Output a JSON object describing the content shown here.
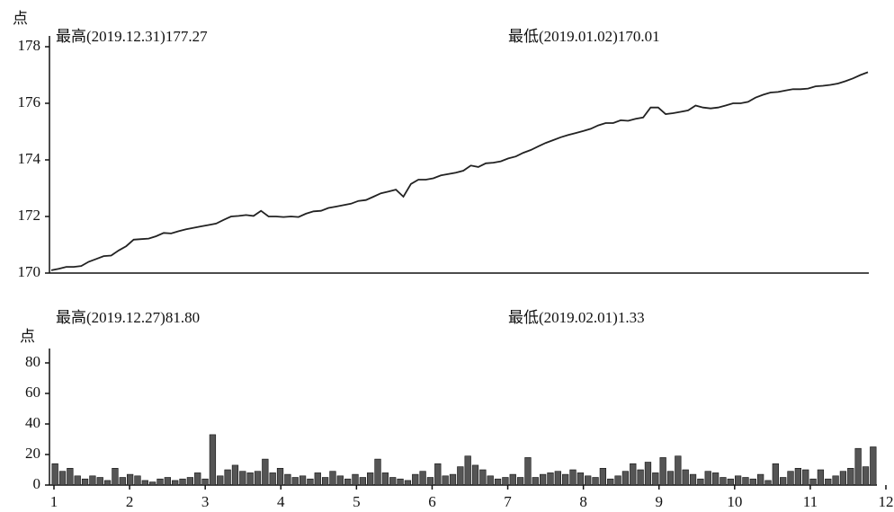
{
  "chart_data": [
    {
      "type": "line",
      "y_unit": "点",
      "annotations": [
        "最高(2019.12.31)177.27",
        "最低(2019.01.02)170.01"
      ],
      "color": "#222222",
      "ylim": [
        170,
        178
      ],
      "yticks": [
        170,
        172,
        174,
        176,
        178
      ],
      "values": [
        170.1,
        170.15,
        170.22,
        170.22,
        170.25,
        170.4,
        170.5,
        170.6,
        170.62,
        170.8,
        170.95,
        171.18,
        171.2,
        171.22,
        171.3,
        171.42,
        171.4,
        171.48,
        171.55,
        171.6,
        171.65,
        171.7,
        171.75,
        171.88,
        172.0,
        172.02,
        172.05,
        172.02,
        172.2,
        172.0,
        172.0,
        171.98,
        172.0,
        171.98,
        172.1,
        172.18,
        172.2,
        172.3,
        172.35,
        172.4,
        172.45,
        172.55,
        172.58,
        172.7,
        172.82,
        172.88,
        172.95,
        172.7,
        173.15,
        173.3,
        173.3,
        173.35,
        173.45,
        173.5,
        173.55,
        173.62,
        173.8,
        173.75,
        173.88,
        173.9,
        173.95,
        174.05,
        174.12,
        174.25,
        174.35,
        174.48,
        174.6,
        174.7,
        174.8,
        174.88,
        174.95,
        175.02,
        175.1,
        175.22,
        175.3,
        175.3,
        175.4,
        175.38,
        175.45,
        175.5,
        175.85,
        175.85,
        175.62,
        175.65,
        175.7,
        175.75,
        175.92,
        175.85,
        175.82,
        175.85,
        175.92,
        176.0,
        176.0,
        176.05,
        176.2,
        176.3,
        176.38,
        176.4,
        176.45,
        176.5,
        176.5,
        176.52,
        176.6,
        176.62,
        176.65,
        176.7,
        176.78,
        176.88,
        177.0,
        177.1
      ]
    },
    {
      "type": "bar",
      "y_unit": "点",
      "annotations": [
        "最高(2019.12.27)81.80",
        "最低(2019.02.01)1.33"
      ],
      "color": "#555555",
      "ylim": [
        0,
        90
      ],
      "yticks": [
        0,
        20,
        40,
        60,
        80
      ],
      "xlim": [
        1,
        12
      ],
      "xticks": [
        1,
        2,
        3,
        4,
        5,
        6,
        7,
        8,
        9,
        10,
        11,
        12
      ],
      "values": [
        14,
        9,
        11,
        6,
        4,
        6,
        5,
        3,
        11,
        5,
        7,
        6,
        3,
        2,
        4,
        5,
        3,
        4,
        5,
        8,
        4,
        33,
        6,
        10,
        13,
        9,
        8,
        9,
        17,
        8,
        11,
        7,
        5,
        6,
        4,
        8,
        5,
        9,
        6,
        4,
        7,
        5,
        8,
        17,
        8,
        5,
        4,
        3,
        7,
        9,
        5,
        14,
        6,
        7,
        12,
        19,
        13,
        10,
        6,
        4,
        5,
        7,
        5,
        18,
        5,
        7,
        8,
        9,
        7,
        10,
        8,
        6,
        5,
        11,
        4,
        6,
        9,
        14,
        10,
        15,
        8,
        18,
        9,
        19,
        10,
        7,
        4,
        9,
        8,
        5,
        4,
        6,
        5,
        4,
        7,
        3,
        14,
        5,
        9,
        11,
        10,
        4,
        10,
        4,
        6,
        9,
        11,
        24,
        12,
        25
      ]
    }
  ]
}
